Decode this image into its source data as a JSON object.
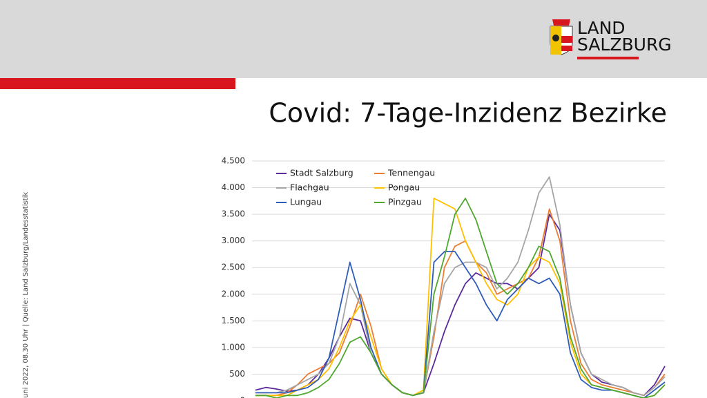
{
  "header": {
    "logo": [
      "LAND",
      "SALZBURG"
    ]
  },
  "source": "uni 2022, 08.30 Uhr | Quelle: Land Salzburg/Landesstatistik",
  "chart_data": {
    "type": "line",
    "title": "Covid: 7-Tage-Inzidenz Bezirke",
    "ylim": [
      0,
      4500
    ],
    "yticks": [
      0,
      500,
      {
        "value": 1000,
        "label": "1.000"
      },
      {
        "value": 1500,
        "label": "1.500"
      },
      {
        "value": 2000,
        "label": "2.000"
      },
      {
        "value": 2500,
        "label": "2.500"
      },
      {
        "value": 3000,
        "label": "3.000"
      },
      {
        "value": 3500,
        "label": "3.500"
      },
      {
        "value": 4000,
        "label": "4.000"
      },
      {
        "value": 4500,
        "label": "4.500"
      }
    ],
    "grid": true,
    "legend": "top-left",
    "series": [
      {
        "name": "Stadt Salzburg",
        "color": "#5b2a9b",
        "values": [
          200,
          250,
          220,
          180,
          200,
          300,
          500,
          800,
          1200,
          1550,
          1500,
          900,
          500,
          300,
          150,
          100,
          150,
          700,
          1300,
          1800,
          2200,
          2400,
          2300,
          2200,
          2200,
          2100,
          2300,
          2500,
          3500,
          3200,
          1800,
          900,
          500,
          350,
          300,
          250,
          150,
          100,
          300,
          650
        ]
      },
      {
        "name": "Tennengau",
        "color": "#ed7d31",
        "values": [
          100,
          100,
          100,
          150,
          300,
          500,
          600,
          700,
          900,
          1400,
          2000,
          1400,
          600,
          300,
          150,
          100,
          150,
          1200,
          2500,
          2900,
          3000,
          2600,
          2400,
          2000,
          2100,
          2200,
          2300,
          2700,
          3600,
          3000,
          1500,
          700,
          400,
          300,
          250,
          200,
          150,
          100,
          250,
          500
        ]
      },
      {
        "name": "Flachgau",
        "color": "#a5a5a5",
        "values": [
          150,
          150,
          150,
          200,
          300,
          400,
          500,
          700,
          1200,
          2200,
          1800,
          900,
          500,
          300,
          150,
          100,
          150,
          1300,
          2200,
          2500,
          2600,
          2600,
          2500,
          2100,
          2300,
          2600,
          3200,
          3900,
          4200,
          3300,
          1800,
          900,
          500,
          400,
          300,
          250,
          150,
          100,
          250,
          450
        ]
      },
      {
        "name": "Pongau",
        "color": "#ffc000",
        "values": [
          100,
          100,
          100,
          100,
          200,
          300,
          400,
          600,
          1000,
          1500,
          1800,
          1200,
          600,
          300,
          150,
          100,
          200,
          3800,
          3700,
          3600,
          3000,
          2600,
          2200,
          1900,
          1800,
          2000,
          2500,
          2700,
          2600,
          2200,
          1100,
          500,
          300,
          250,
          200,
          150,
          100,
          50,
          100,
          300
        ]
      },
      {
        "name": "Lungau",
        "color": "#2e5cb8",
        "values": [
          150,
          150,
          150,
          150,
          200,
          250,
          400,
          800,
          1700,
          2600,
          1900,
          1000,
          500,
          300,
          150,
          100,
          150,
          2600,
          2800,
          2800,
          2500,
          2200,
          1800,
          1500,
          1900,
          2100,
          2300,
          2200,
          2300,
          2000,
          900,
          400,
          250,
          200,
          200,
          150,
          100,
          50,
          200,
          350
        ]
      },
      {
        "name": "Pinzgau",
        "color": "#4ea72e",
        "values": [
          100,
          100,
          50,
          100,
          100,
          150,
          250,
          400,
          700,
          1100,
          1200,
          900,
          500,
          300,
          150,
          100,
          150,
          2000,
          2700,
          3500,
          3800,
          3400,
          2800,
          2200,
          2000,
          2200,
          2500,
          2900,
          2800,
          2300,
          1200,
          600,
          300,
          250,
          200,
          150,
          100,
          50,
          100,
          300
        ]
      }
    ]
  }
}
